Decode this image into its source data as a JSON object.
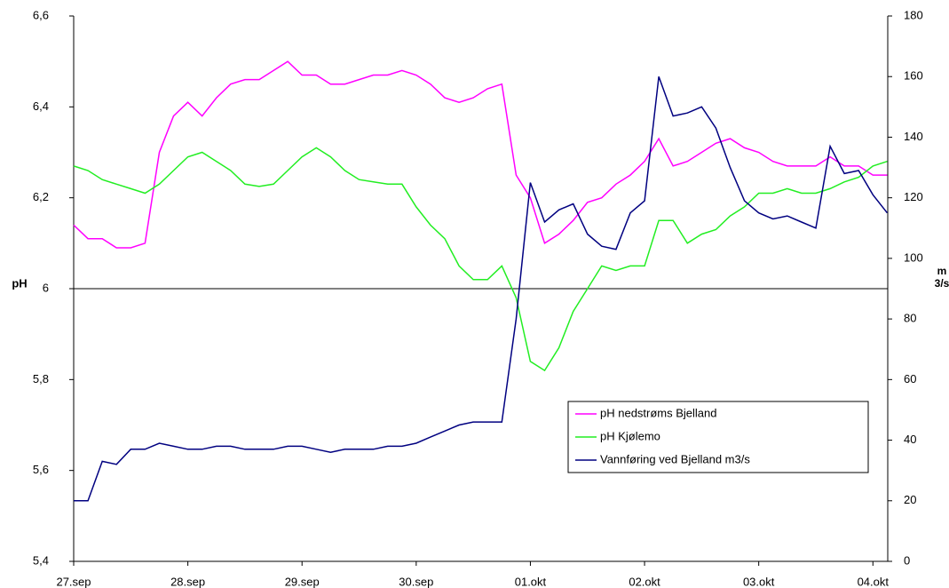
{
  "chart_data": {
    "type": "line",
    "ylabel": "pH",
    "y2label": "m3/s",
    "x": [
      0,
      0.125,
      0.25,
      0.375,
      0.5,
      0.625,
      0.75,
      0.875,
      1,
      1.125,
      1.25,
      1.375,
      1.5,
      1.625,
      1.75,
      1.875,
      2,
      2.125,
      2.25,
      2.375,
      2.5,
      2.625,
      2.75,
      2.875,
      3,
      3.125,
      3.25,
      3.375,
      3.5,
      3.625,
      3.75,
      3.875,
      4,
      4.125,
      4.25,
      4.375,
      4.5,
      4.625,
      4.75,
      4.875,
      5,
      5.125,
      5.25,
      5.375,
      5.5,
      5.625,
      5.75,
      5.875,
      6,
      6.125,
      6.25,
      6.375,
      6.5,
      6.625,
      6.75,
      6.875,
      7,
      7.125
    ],
    "xlim": [
      0,
      7.13
    ],
    "xticks": [
      {
        "value": 0,
        "label": "27.sep"
      },
      {
        "value": 1,
        "label": "28.sep"
      },
      {
        "value": 2,
        "label": "29.sep"
      },
      {
        "value": 3,
        "label": "30.sep"
      },
      {
        "value": 4,
        "label": "01.okt"
      },
      {
        "value": 5,
        "label": "02.okt"
      },
      {
        "value": 6,
        "label": "03.okt"
      },
      {
        "value": 7,
        "label": "04.okt"
      }
    ],
    "ylim": [
      5.4,
      6.6
    ],
    "yticks": [
      {
        "value": 5.4,
        "label": "5,4"
      },
      {
        "value": 5.6,
        "label": "5,6"
      },
      {
        "value": 5.8,
        "label": "5,8"
      },
      6,
      {
        "value": 6.2,
        "label": "6,2"
      },
      {
        "value": 6.4,
        "label": "6,4"
      },
      {
        "value": 6.6,
        "label": "6,6"
      }
    ],
    "x_axis_crosses": 6,
    "y2lim": [
      0,
      180
    ],
    "y2ticks": [
      0,
      20,
      40,
      60,
      80,
      100,
      120,
      140,
      160,
      180
    ],
    "grid": false,
    "legend": "lower-right",
    "series": [
      {
        "name": "pH nedstrøms Bjelland",
        "color": "#ff00ff",
        "values": [
          6.14,
          6.11,
          6.11,
          6.09,
          6.09,
          6.1,
          6.3,
          6.38,
          6.41,
          6.38,
          6.42,
          6.45,
          6.46,
          6.46,
          6.48,
          6.5,
          6.47,
          6.47,
          6.45,
          6.45,
          6.46,
          6.47,
          6.47,
          6.48,
          6.47,
          6.45,
          6.42,
          6.41,
          6.42,
          6.44,
          6.45,
          6.25,
          6.2,
          6.1,
          6.12,
          6.15,
          6.19,
          6.2,
          6.23,
          6.25,
          6.28,
          6.33,
          6.27,
          6.28,
          6.3,
          6.32,
          6.33,
          6.31,
          6.3,
          6.28,
          6.27,
          6.27,
          6.27,
          6.29,
          6.27,
          6.27,
          6.25,
          6.25
        ]
      },
      {
        "name": "pH Kjølemo",
        "color": "#22ee22",
        "values": [
          6.27,
          6.26,
          6.24,
          6.23,
          6.22,
          6.21,
          6.23,
          6.26,
          6.29,
          6.3,
          6.28,
          6.26,
          6.23,
          6.225,
          6.23,
          6.26,
          6.29,
          6.31,
          6.29,
          6.26,
          6.24,
          6.235,
          6.23,
          6.23,
          6.18,
          6.14,
          6.11,
          6.05,
          6.02,
          6.02,
          6.05,
          5.98,
          5.84,
          5.82,
          5.87,
          5.95,
          6.0,
          6.05,
          6.04,
          6.05,
          6.05,
          6.15,
          6.15,
          6.1,
          6.12,
          6.13,
          6.16,
          6.18,
          6.21,
          6.21,
          6.22,
          6.21,
          6.21,
          6.22,
          6.235,
          6.245,
          6.27,
          6.28
        ]
      },
      {
        "name": "Vannføring ved Bjelland m3/s",
        "color": "#000080",
        "axis": "y2",
        "values": [
          20,
          20,
          33,
          32,
          37,
          37,
          39,
          38,
          37,
          37,
          38,
          38,
          37,
          37,
          37,
          38,
          38,
          37,
          36,
          37,
          37,
          37,
          38,
          38,
          39,
          41,
          43,
          45,
          46,
          46,
          46,
          80,
          125,
          112,
          116,
          118,
          108,
          104,
          103,
          115,
          119,
          160,
          147,
          148,
          150,
          143,
          130,
          119,
          115,
          113,
          114,
          112,
          110,
          137,
          128,
          129,
          121,
          115
        ]
      }
    ]
  }
}
